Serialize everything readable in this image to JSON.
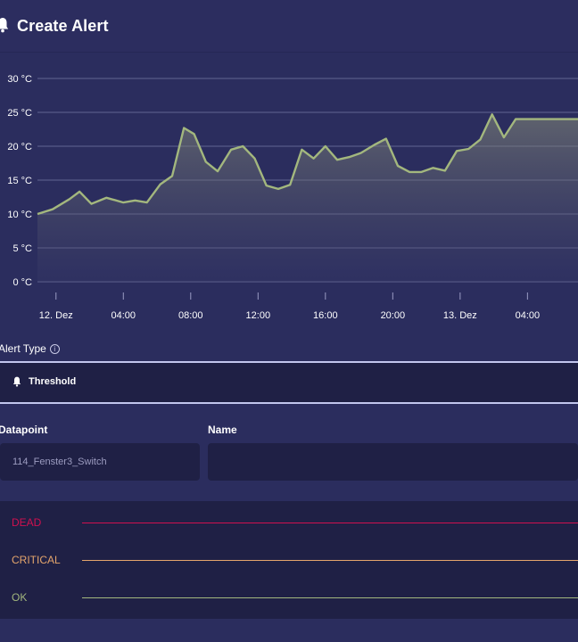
{
  "header": {
    "title": "Create Alert",
    "icon": "bell-icon"
  },
  "chart_data": {
    "type": "area",
    "y_ticks": [
      "30 °C",
      "25 °C",
      "20 °C",
      "15 °C",
      "10 °C",
      "5 °C",
      "0 °C"
    ],
    "y_tick_values": [
      30,
      25,
      20,
      15,
      10,
      5,
      0
    ],
    "ylim": [
      0,
      30
    ],
    "x_ticks": [
      "12. Dez",
      "04:00",
      "08:00",
      "12:00",
      "16:00",
      "20:00",
      "13. Dez",
      "04:00"
    ],
    "x_tick_hours": [
      0,
      4,
      8,
      12,
      16,
      20,
      24,
      28
    ],
    "xlim_hours": [
      -1.1,
      31.0
    ],
    "series": [
      {
        "hours": [
          -1.1,
          -0.2,
          0.8,
          1.4,
          2.1,
          3.0,
          4.0,
          4.7,
          5.4,
          6.2,
          6.9,
          7.6,
          8.2,
          8.9,
          9.6,
          10.4,
          11.1,
          11.8,
          12.5,
          13.2,
          13.9,
          14.6,
          15.3,
          16.0,
          16.7,
          17.4,
          18.1,
          18.9,
          19.6,
          20.3,
          21.0,
          21.7,
          22.4,
          23.1,
          23.8,
          24.5,
          25.2,
          25.9,
          26.6,
          27.3,
          28.0,
          28.7,
          29.4,
          30.1,
          30.8,
          31.0
        ],
        "values": [
          10.0,
          10.7,
          12.2,
          13.3,
          11.5,
          12.4,
          11.7,
          12.0,
          11.7,
          14.4,
          15.6,
          22.7,
          21.8,
          17.7,
          16.3,
          19.5,
          20.0,
          18.2,
          14.2,
          13.7,
          14.3,
          19.5,
          18.2,
          20.0,
          18.0,
          18.4,
          19.0,
          20.2,
          21.1,
          17.1,
          16.2,
          16.2,
          16.8,
          16.4,
          19.3,
          19.6,
          21.0,
          24.7,
          21.3,
          24.0,
          24.0,
          24.0,
          24.0,
          24.0,
          24.0,
          24.0
        ]
      }
    ],
    "line_color": "#a3b77e",
    "grid": true
  },
  "alert_type": {
    "label": "Alert Type",
    "info_icon": "info-icon",
    "value": "Threshold"
  },
  "datapoint": {
    "label": "Datapoint",
    "placeholder": "114_Fenster3_Switch"
  },
  "name": {
    "label": "Name",
    "value": ""
  },
  "levels": [
    {
      "name": "DEAD",
      "color": "#d0104f"
    },
    {
      "name": "CRITICAL",
      "color": "#e5a56c"
    },
    {
      "name": "OK",
      "color": "#a3b77e"
    }
  ]
}
